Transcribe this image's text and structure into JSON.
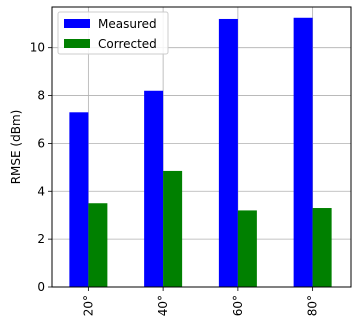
{
  "chart_data": {
    "type": "bar",
    "categories": [
      "20°",
      "40°",
      "60°",
      "80°"
    ],
    "series": [
      {
        "name": "Measured",
        "values": [
          7.3,
          8.2,
          11.2,
          11.25
        ],
        "color": "#0000ff"
      },
      {
        "name": "Corrected",
        "values": [
          3.5,
          4.85,
          3.2,
          3.3
        ],
        "color": "#008000"
      }
    ],
    "title": "",
    "xlabel": "",
    "ylabel": "RMSE (dBm)",
    "ylim": [
      0,
      11.7
    ],
    "yticks": [
      0,
      2,
      4,
      6,
      8,
      10
    ],
    "grid": true,
    "legend_position": "top-left"
  }
}
